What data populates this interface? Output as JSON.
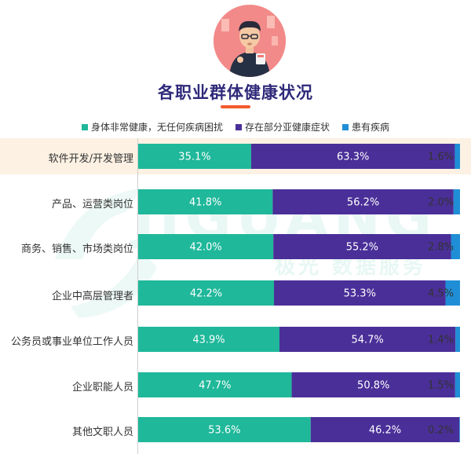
{
  "colors": {
    "healthy": "#1fb89a",
    "symptoms": "#4a2f98",
    "disease": "#1f8ed6",
    "title": "#2f2a7a",
    "highlight": "#fcf1e3"
  },
  "chart_data": {
    "type": "bar",
    "orientation": "horizontal",
    "stacked": true,
    "title": "各职业群体健康状况",
    "categories": [
      "软件开发/开发管理",
      "产品、运营类岗位",
      "商务、销售、市场类岗位",
      "企业中高层管理者",
      "公务员或事业单位工作人员",
      "企业职能人员",
      "其他文职人员"
    ],
    "series": [
      {
        "name": "身体非常健康，无任何疾病困扰",
        "color": "#1fb89a",
        "values": [
          35.1,
          41.8,
          42.0,
          42.2,
          43.9,
          47.7,
          53.6
        ],
        "labels": [
          "35.1%",
          "41.8%",
          "42.0%",
          "42.2%",
          "43.9%",
          "47.7%",
          "53.6%"
        ]
      },
      {
        "name": "存在部分亚健康症状",
        "color": "#4a2f98",
        "values": [
          63.3,
          56.2,
          55.2,
          53.3,
          54.7,
          50.8,
          46.2
        ],
        "labels": [
          "63.3%",
          "56.2%",
          "55.2%",
          "53.3%",
          "54.7%",
          "50.8%",
          "46.2%"
        ]
      },
      {
        "name": "患有疾病",
        "color": "#1f8ed6",
        "values": [
          1.6,
          2.0,
          2.8,
          4.5,
          1.4,
          1.5,
          0.2
        ],
        "labels": [
          "1.6%",
          "2.0%",
          "2.8%",
          "4.5%",
          "1.4%",
          "1.5%",
          "0.2%"
        ]
      }
    ],
    "xlim": [
      0,
      100
    ],
    "legend": "top-center",
    "highlighted_category": "软件开发/开发管理"
  },
  "watermark": {
    "brand": "JIGUANG",
    "tagline": "极光 数据服务"
  }
}
